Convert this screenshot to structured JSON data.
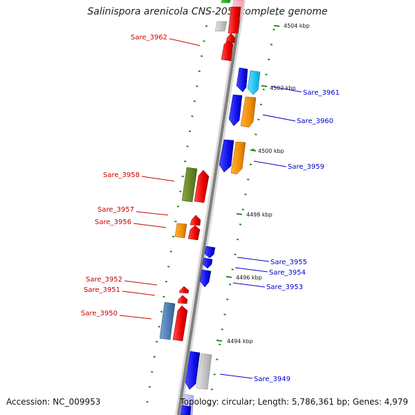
{
  "title": "Salinispora arenicola CNS-205, complete genome",
  "footer": {
    "accession": "Accession: NC_009953",
    "stats": "Topology: circular; Length: 5,786,361 bp; Genes: 4,979"
  },
  "colors": {
    "backbone": "#808080",
    "forward_label": "#0000cc",
    "reverse_label": "#cc0000",
    "tick_green": "#228b22"
  },
  "kbp_markers": [
    "4504 kbp",
    "4502 kbp",
    "4500 kbp",
    "4498 kbp",
    "4496 kbp",
    "4494 kbp"
  ],
  "gene_labels": {
    "reverse": [
      "Sare_3962",
      "Sare_3958",
      "Sare_3957",
      "Sare_3956",
      "Sare_3952",
      "Sare_3951",
      "Sare_3950"
    ],
    "forward": [
      "Sare_3961",
      "Sare_3960",
      "Sare_3959",
      "Sare_3955",
      "Sare_3954",
      "Sare_3953",
      "Sare_3949"
    ]
  }
}
